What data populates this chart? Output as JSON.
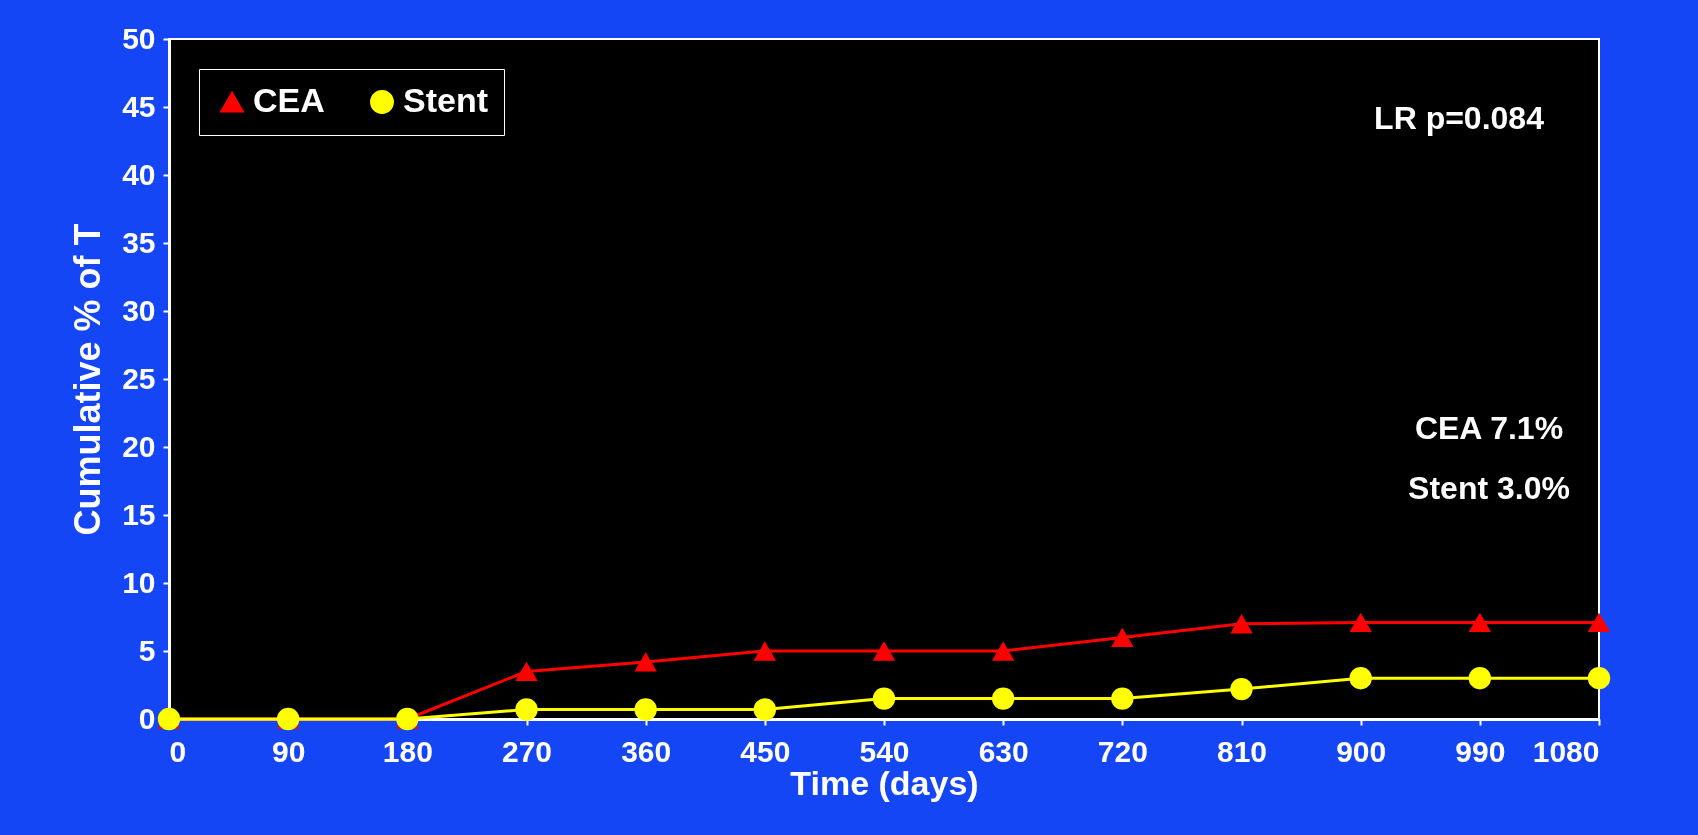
{
  "chart_data": {
    "type": "line",
    "xlabel": "Time (days)",
    "ylabel": "Cumulative % of T",
    "x": [
      0,
      90,
      180,
      270,
      360,
      450,
      540,
      630,
      720,
      810,
      900,
      990,
      1080
    ],
    "series": [
      {
        "name": "CEA",
        "color": "#ff0000",
        "marker": "triangle",
        "values": [
          0,
          0,
          0,
          3.5,
          4.2,
          5.0,
          5.0,
          5.0,
          6.0,
          7.0,
          7.1,
          7.1,
          7.1
        ]
      },
      {
        "name": "Stent",
        "color": "#ffff00",
        "marker": "circle",
        "values": [
          0,
          0,
          0,
          0.7,
          0.7,
          0.7,
          1.5,
          1.5,
          1.5,
          2.2,
          3.0,
          3.0,
          3.0
        ]
      }
    ],
    "xlim": [
      0,
      1080
    ],
    "xticks": [
      0,
      90,
      180,
      270,
      360,
      450,
      540,
      630,
      720,
      810,
      900,
      990,
      1080
    ],
    "ylim": [
      0,
      50
    ],
    "yticks": [
      0,
      5,
      10,
      15,
      20,
      25,
      30,
      35,
      40,
      45,
      50
    ],
    "legend": "top left",
    "grid": false,
    "annotations": [
      "LR p=0.084",
      "CEA 7.1%",
      "Stent 3.0%"
    ]
  }
}
